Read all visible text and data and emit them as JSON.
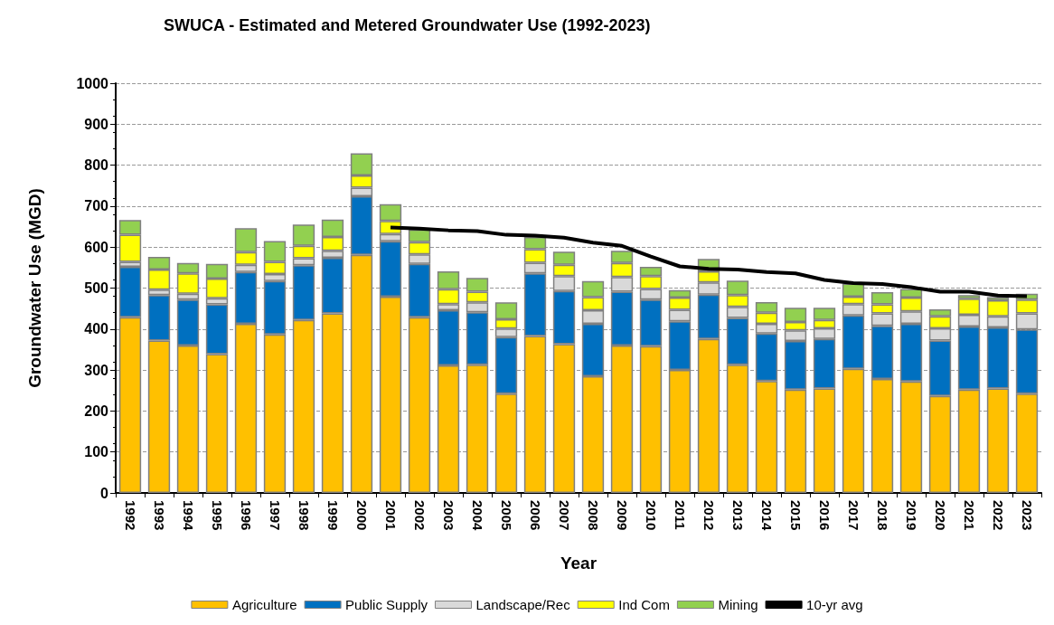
{
  "chart_data": {
    "type": "bar",
    "title": "SWUCA - Estimated and Metered Groundwater Use (1992-2023)",
    "xlabel": "Year",
    "ylabel": "Groundwater Use (MGD)",
    "categories": [
      "1992",
      "1993",
      "1994",
      "1995",
      "1996",
      "1997",
      "1998",
      "1999",
      "2000",
      "2001",
      "2002",
      "2003",
      "2004",
      "2005",
      "2006",
      "2007",
      "2008",
      "2009",
      "2010",
      "2011",
      "2012",
      "2013",
      "2014",
      "2015",
      "2016",
      "2017",
      "2018",
      "2019",
      "2020",
      "2021",
      "2022",
      "2023"
    ],
    "stacked": true,
    "series": [
      {
        "name": "Agriculture",
        "color": "#ffc000",
        "values": [
          429,
          372,
          360,
          339,
          413,
          387,
          422,
          438,
          581,
          479,
          429,
          311,
          313,
          242,
          383,
          363,
          285,
          360,
          358,
          300,
          376,
          313,
          273,
          252,
          255,
          303,
          278,
          272,
          237,
          252,
          255,
          242
        ]
      },
      {
        "name": "Public Supply",
        "color": "#0070c0",
        "values": [
          123,
          111,
          112,
          121,
          126,
          130,
          134,
          136,
          143,
          135,
          130,
          135,
          128,
          138,
          153,
          130,
          128,
          131,
          114,
          119,
          108,
          114,
          116,
          119,
          121,
          130,
          130,
          141,
          135,
          154,
          149,
          157
        ]
      },
      {
        "name": "Landscape/Rec",
        "color": "#d9d9d9",
        "values": [
          12,
          13,
          14,
          15,
          18,
          17,
          17,
          17,
          21,
          18,
          23,
          15,
          24,
          21,
          26,
          36,
          33,
          36,
          26,
          28,
          30,
          27,
          24,
          26,
          26,
          28,
          30,
          30,
          30,
          29,
          27,
          39
        ]
      },
      {
        "name": "Ind Com",
        "color": "#ffff00",
        "values": [
          66,
          49,
          50,
          48,
          31,
          30,
          30,
          34,
          30,
          32,
          30,
          36,
          26,
          23,
          33,
          28,
          32,
          34,
          31,
          30,
          27,
          29,
          27,
          20,
          20,
          18,
          22,
          34,
          29,
          39,
          39,
          34
        ]
      },
      {
        "name": "Mining",
        "color": "#92d050",
        "values": [
          36,
          31,
          25,
          36,
          58,
          51,
          52,
          42,
          54,
          41,
          31,
          44,
          34,
          41,
          30,
          32,
          39,
          30,
          23,
          18,
          30,
          35,
          26,
          35,
          30,
          32,
          30,
          21,
          17,
          9,
          8,
          14
        ]
      },
      {
        "name": "10-yr avg",
        "type": "line",
        "color": "#000000",
        "values": [
          null,
          null,
          null,
          null,
          null,
          null,
          null,
          null,
          null,
          648,
          645,
          641,
          639,
          630,
          628,
          623,
          611,
          603,
          577,
          553,
          547,
          545,
          539,
          536,
          520,
          512,
          510,
          502,
          491,
          491,
          482,
          480
        ]
      }
    ],
    "ylim": [
      0,
      1000
    ],
    "yticks": [
      0,
      100,
      200,
      300,
      400,
      500,
      600,
      700,
      800,
      900,
      1000
    ],
    "grid": "y",
    "legend": "bottom",
    "marker": "none",
    "line_style": "solid"
  }
}
